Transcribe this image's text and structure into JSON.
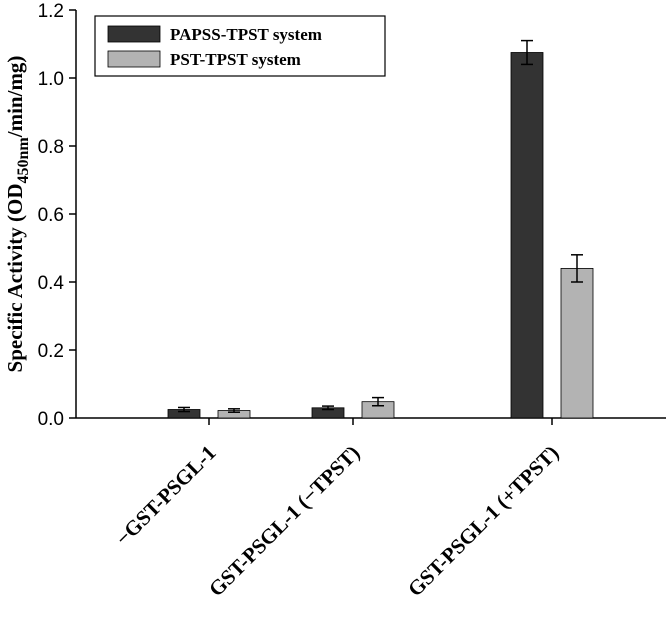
{
  "chart_data": {
    "type": "bar",
    "categories": [
      "−GST-PSGL-1",
      "GST-PSGL-1 (−TPST)",
      "GST-PSGL-1 (+TPST)"
    ],
    "series": [
      {
        "name": "PAPSS-TPST system",
        "values": [
          0.025,
          0.03,
          1.075
        ],
        "errors": [
          0.006,
          0.005,
          0.035
        ],
        "color": "#333333"
      },
      {
        "name": "PST-TPST system",
        "values": [
          0.022,
          0.048,
          0.44
        ],
        "errors": [
          0.005,
          0.012,
          0.04
        ],
        "color": "#b3b3b3"
      }
    ],
    "ylabel": {
      "prefix": "Specific Activity (OD",
      "subscript": "450nm",
      "suffix": "/min/mg)"
    },
    "ylim": [
      0,
      1.2
    ],
    "yticks": [
      "0.0",
      "0.2",
      "0.4",
      "0.6",
      "0.8",
      "1.0",
      "1.2"
    ],
    "legend_position": "top-left",
    "grid": false
  }
}
